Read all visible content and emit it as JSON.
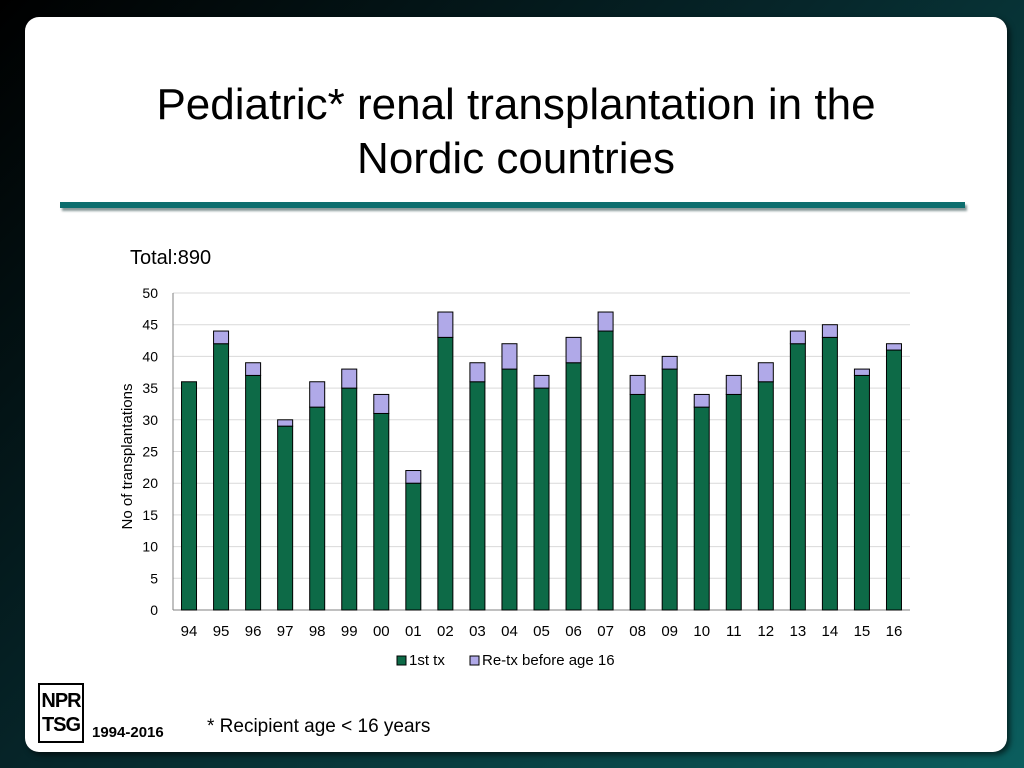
{
  "slide": {
    "title_line1": "Pediatric* renal transplantation in the",
    "title_line2": "Nordic countries",
    "total_label": "Total:890",
    "footnote": "* Recipient age < 16 years",
    "logo_line1": "NPR",
    "logo_line2": "TSG",
    "year_range": "1994-2016"
  },
  "colors": {
    "first_tx": "#0d6a47",
    "re_tx": "#b0a9e8",
    "rule": "#0d6e6e"
  },
  "chart_data": {
    "type": "bar",
    "stacked": true,
    "categories": [
      "94",
      "95",
      "96",
      "97",
      "98",
      "99",
      "00",
      "01",
      "02",
      "03",
      "04",
      "05",
      "06",
      "07",
      "08",
      "09",
      "10",
      "11",
      "12",
      "13",
      "14",
      "15",
      "16"
    ],
    "series": [
      {
        "name": "1st tx",
        "values": [
          36,
          42,
          37,
          29,
          32,
          35,
          31,
          20,
          43,
          36,
          38,
          35,
          39,
          44,
          34,
          38,
          32,
          34,
          36,
          42,
          43,
          37,
          41
        ]
      },
      {
        "name": "Re-tx before age 16",
        "values": [
          0,
          2,
          2,
          1,
          4,
          3,
          3,
          2,
          4,
          3,
          4,
          2,
          4,
          3,
          3,
          2,
          2,
          3,
          3,
          2,
          2,
          1,
          1
        ]
      }
    ],
    "ylabel": "No of transplantations",
    "ylim": [
      0,
      50
    ],
    "yticks": [
      0,
      5,
      10,
      15,
      20,
      25,
      30,
      35,
      40,
      45,
      50
    ],
    "grid": true,
    "legend_position": "bottom"
  }
}
